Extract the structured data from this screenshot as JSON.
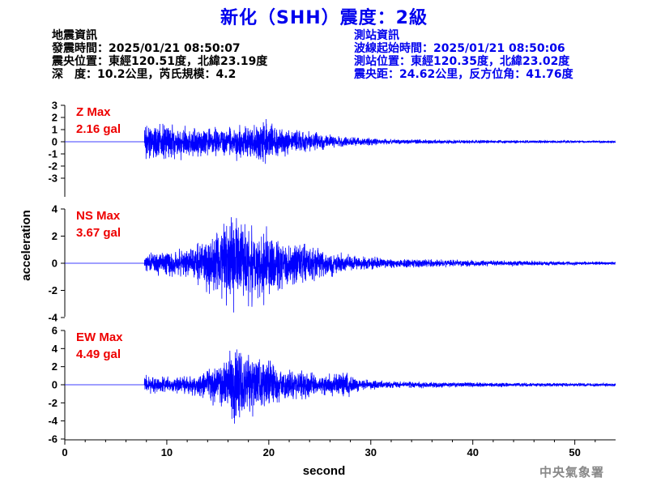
{
  "title": "新化（SHH）震度：2級",
  "event_info": {
    "heading": "地震資訊",
    "origin_time": "發震時間：2025/01/21 08:50:07",
    "epicenter": "震央位置：東經120.51度，北緯23.19度",
    "depth_magnitude": "深　度：10.2公里，芮氏規模：4.2"
  },
  "station_info": {
    "heading": "測站資訊",
    "wave_start": "波線起始時間：2025/01/21 08:50:06",
    "station_location": "測站位置：東經120.35度，北緯23.02度",
    "distance_azimuth": "震央距：24.62公里，反方位角：41.76度"
  },
  "footer": "中央氣象署",
  "colors": {
    "title": "#0000ee",
    "trace": "#0000ff",
    "max_label": "#ee0000",
    "axis": "#000000",
    "station_info": "#0000ee"
  },
  "chart_data": {
    "type": "line",
    "xlabel": "second",
    "ylabel": "acceleration",
    "xlim": [
      0,
      54
    ],
    "xticks": [
      0,
      10,
      20,
      30,
      40,
      50
    ],
    "panels": [
      {
        "name": "Z",
        "max_label": "Z Max",
        "max_value": "2.16 gal",
        "ylim": [
          -3,
          3
        ],
        "yticks": [
          3,
          2,
          1,
          0,
          -1,
          -2,
          -3
        ],
        "onset_s": 7.8,
        "trace_envelope": [
          [
            7.8,
            1.3
          ],
          [
            10,
            1.3
          ],
          [
            12,
            1.1
          ],
          [
            14,
            1.0
          ],
          [
            16,
            1.0
          ],
          [
            17,
            1.3
          ],
          [
            18,
            1.2
          ],
          [
            19.5,
            1.7
          ],
          [
            21,
            1.0
          ],
          [
            23,
            0.85
          ],
          [
            25,
            0.6
          ],
          [
            27,
            0.4
          ],
          [
            29,
            0.3
          ],
          [
            32,
            0.18
          ],
          [
            40,
            0.12
          ],
          [
            54,
            0.08
          ]
        ]
      },
      {
        "name": "NS",
        "max_label": "NS Max",
        "max_value": "3.67 gal",
        "ylim": [
          -4,
          4
        ],
        "yticks": [
          4,
          2,
          0,
          -2,
          -4
        ],
        "onset_s": 7.8,
        "trace_envelope": [
          [
            7.8,
            0.6
          ],
          [
            10,
            0.8
          ],
          [
            12,
            0.9
          ],
          [
            14,
            1.8
          ],
          [
            15.5,
            2.5
          ],
          [
            16.5,
            3.2
          ],
          [
            17.5,
            3.0
          ],
          [
            19,
            2.6
          ],
          [
            21,
            1.8
          ],
          [
            23,
            1.3
          ],
          [
            26,
            0.8
          ],
          [
            28,
            0.5
          ],
          [
            32,
            0.3
          ],
          [
            40,
            0.2
          ],
          [
            54,
            0.1
          ]
        ]
      },
      {
        "name": "EW",
        "max_label": "EW Max",
        "max_value": "4.49 gal",
        "ylim": [
          -6,
          6
        ],
        "yticks": [
          6,
          4,
          2,
          0,
          -2,
          -4,
          -6
        ],
        "onset_s": 7.8,
        "trace_envelope": [
          [
            7.8,
            0.8
          ],
          [
            10,
            0.8
          ],
          [
            13,
            1.0
          ],
          [
            15,
            2.0
          ],
          [
            16,
            3.2
          ],
          [
            17,
            3.8
          ],
          [
            18,
            3.0
          ],
          [
            19,
            2.6
          ],
          [
            21,
            1.7
          ],
          [
            23,
            1.4
          ],
          [
            25,
            1.0
          ],
          [
            27.5,
            1.3
          ],
          [
            29,
            0.5
          ],
          [
            32,
            0.35
          ],
          [
            40,
            0.22
          ],
          [
            54,
            0.15
          ]
        ]
      }
    ]
  }
}
